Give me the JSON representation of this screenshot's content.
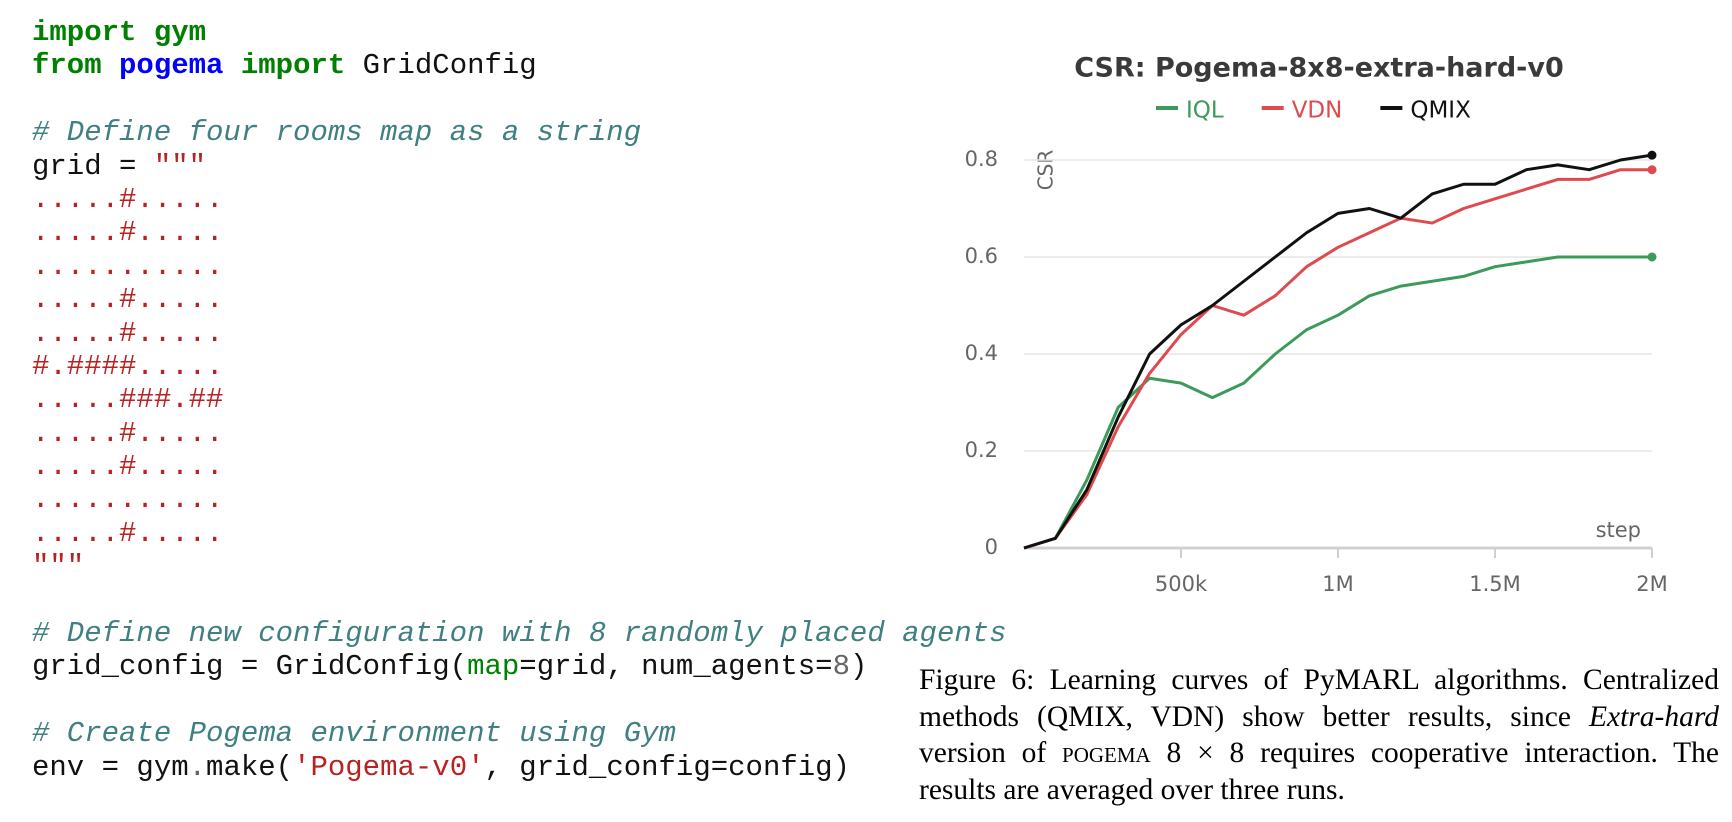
{
  "code": [
    [
      {
        "text": "import",
        "color": "#008000",
        "bold": true
      },
      {
        "text": " "
      },
      {
        "text": "gym",
        "color": "#008000",
        "bold": true
      }
    ],
    [
      {
        "text": "from",
        "color": "#008000",
        "bold": true
      },
      {
        "text": " "
      },
      {
        "text": "pogema",
        "color": "#0000ff",
        "bold": true
      },
      {
        "text": " "
      },
      {
        "text": "import",
        "color": "#008000",
        "bold": true
      },
      {
        "text": " GridConfig"
      }
    ],
    [],
    [
      {
        "text": "# Define four rooms map as a string",
        "color": "#408080",
        "italic": true
      }
    ],
    [
      {
        "text": "grid = "
      },
      {
        "text": "\"\"\"",
        "color": "#ba2121"
      }
    ],
    [
      {
        "text": ".....#.....",
        "color": "#ba2121"
      }
    ],
    [
      {
        "text": ".....#.....",
        "color": "#ba2121"
      }
    ],
    [
      {
        "text": "...........",
        "color": "#ba2121"
      }
    ],
    [
      {
        "text": ".....#.....",
        "color": "#ba2121"
      }
    ],
    [
      {
        "text": ".....#.....",
        "color": "#ba2121"
      }
    ],
    [
      {
        "text": "#.####.....",
        "color": "#ba2121"
      }
    ],
    [
      {
        "text": ".....###.##",
        "color": "#ba2121"
      }
    ],
    [
      {
        "text": ".....#.....",
        "color": "#ba2121"
      }
    ],
    [
      {
        "text": ".....#.....",
        "color": "#ba2121"
      }
    ],
    [
      {
        "text": "...........",
        "color": "#ba2121"
      }
    ],
    [
      {
        "text": ".....#.....",
        "color": "#ba2121"
      }
    ],
    [
      {
        "text": "\"\"\"",
        "color": "#ba2121"
      }
    ],
    [],
    [
      {
        "text": "# Define new configuration with 8 randomly placed agents",
        "color": "#408080",
        "italic": true
      }
    ],
    [
      {
        "text": "grid_config = GridConfig("
      },
      {
        "text": "map",
        "color": "#008000"
      },
      {
        "text": "=grid, num_agents="
      },
      {
        "text": "8",
        "color": "#666666"
      },
      {
        "text": ")"
      }
    ],
    [],
    [
      {
        "text": "# Create Pogema environment using Gym",
        "color": "#408080",
        "italic": true
      }
    ],
    [
      {
        "text": "env = gym"
      },
      {
        "text": ".",
        "color": "#666666"
      },
      {
        "text": "make("
      },
      {
        "text": "'Pogema-v0'",
        "color": "#ba2121"
      },
      {
        "text": ", grid_config=config)"
      }
    ]
  ],
  "chart_data": {
    "type": "line",
    "title": "CSR: Pogema-8x8-extra-hard-v0",
    "ylabel": "CSR",
    "xlabel": "step",
    "x": [
      0,
      100000,
      200000,
      300000,
      400000,
      500000,
      600000,
      700000,
      800000,
      900000,
      1000000,
      1100000,
      1200000,
      1300000,
      1400000,
      1500000,
      1600000,
      1700000,
      1800000,
      1900000,
      2000000
    ],
    "series": [
      {
        "name": "IQL",
        "color": "#3c9a5a",
        "values": [
          0,
          0.02,
          0.14,
          0.29,
          0.35,
          0.34,
          0.31,
          0.34,
          0.4,
          0.45,
          0.48,
          0.52,
          0.54,
          0.55,
          0.56,
          0.58,
          0.59,
          0.6,
          0.6,
          0.6,
          0.6
        ]
      },
      {
        "name": "VDN",
        "color": "#df4a4f",
        "values": [
          0,
          0.02,
          0.11,
          0.25,
          0.36,
          0.44,
          0.5,
          0.48,
          0.52,
          0.58,
          0.62,
          0.65,
          0.68,
          0.67,
          0.7,
          0.72,
          0.74,
          0.76,
          0.76,
          0.78,
          0.78
        ]
      },
      {
        "name": "QMIX",
        "color": "#111111",
        "values": [
          0,
          0.02,
          0.12,
          0.27,
          0.4,
          0.46,
          0.5,
          0.55,
          0.6,
          0.65,
          0.69,
          0.7,
          0.68,
          0.73,
          0.75,
          0.75,
          0.78,
          0.79,
          0.78,
          0.8,
          0.81
        ]
      }
    ],
    "xlim": [
      0,
      2000000
    ],
    "ylim": [
      0,
      0.85
    ],
    "xticks": [
      {
        "value": 500000,
        "label": "500k"
      },
      {
        "value": 1000000,
        "label": "1M"
      },
      {
        "value": 1500000,
        "label": "1.5M"
      },
      {
        "value": 2000000,
        "label": "2M"
      }
    ],
    "yticks": [
      0,
      0.2,
      0.4,
      0.6,
      0.8
    ],
    "grid": true
  },
  "caption": [
    {
      "text": "Figure 6: Learning curves of PyMARL algorithms. Centralized methods (QMIX, VDN) show better results, since "
    },
    {
      "text": "Extra-hard",
      "style": "italic"
    },
    {
      "text": " version of "
    },
    {
      "text": "pogema",
      "style": "small-caps"
    },
    {
      "text": " 8 × 8 requires cooperative interaction. The results are averaged over three runs."
    }
  ]
}
